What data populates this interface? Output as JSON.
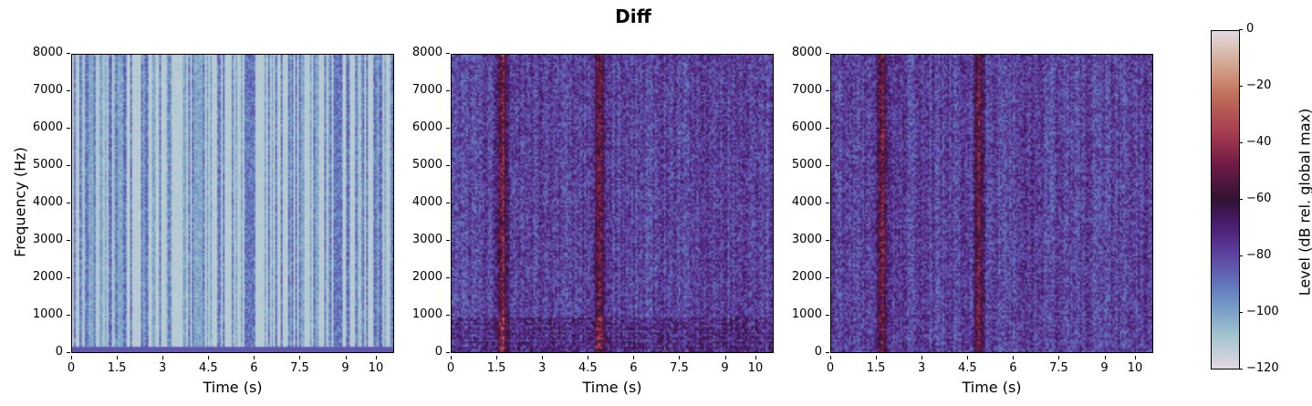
{
  "chart_data": {
    "type": "heatmap",
    "title": "Diff",
    "colormap": "twilight",
    "panels": [
      {
        "name": "panel-1",
        "xlabel": "Time (s)",
        "ylabel": "Frequency (Hz)",
        "xlim": [
          0,
          10.6
        ],
        "ylim": [
          0,
          8000
        ],
        "description": "Mostly pale (near -120 dB) with dark purple vertical speech bands (~-70 to -90 dB)"
      },
      {
        "name": "panel-2",
        "xlabel": "Time (s)",
        "ylabel": "",
        "xlim": [
          0,
          10.6
        ],
        "ylim": [
          0,
          8000
        ],
        "description": "Dense purple background (~-70 dB) with bright orange vertical streaks near 1.6 s and 4.8 s (~-30 dB), harmonic patterns below 1000 Hz"
      },
      {
        "name": "panel-3",
        "xlabel": "Time (s)",
        "ylabel": "",
        "xlim": [
          0,
          10.6
        ],
        "ylim": [
          0,
          8000
        ],
        "description": "Similar to panel 2, purple background with orange streaks near 1.6 s and 4.8 s"
      }
    ],
    "xticks": [
      "0",
      "1.5",
      "3",
      "4.5",
      "6",
      "7.5",
      "9",
      "10"
    ],
    "xtick_values": [
      0,
      1.5,
      3,
      4.5,
      6,
      7.5,
      9,
      10
    ],
    "yticks": [
      "0",
      "1000",
      "2000",
      "3000",
      "4000",
      "5000",
      "6000",
      "7000",
      "8000"
    ],
    "colorbar": {
      "label": "Level (dB rel. global max)",
      "range": [
        -120,
        0
      ],
      "ticks": [
        "0",
        "−20",
        "−40",
        "−60",
        "−80",
        "−100",
        "−120"
      ]
    }
  },
  "title": "Diff",
  "xlabel": "Time (s)",
  "ylabel": "Frequency (Hz)",
  "cblabel": "Level (dB rel. global max)"
}
